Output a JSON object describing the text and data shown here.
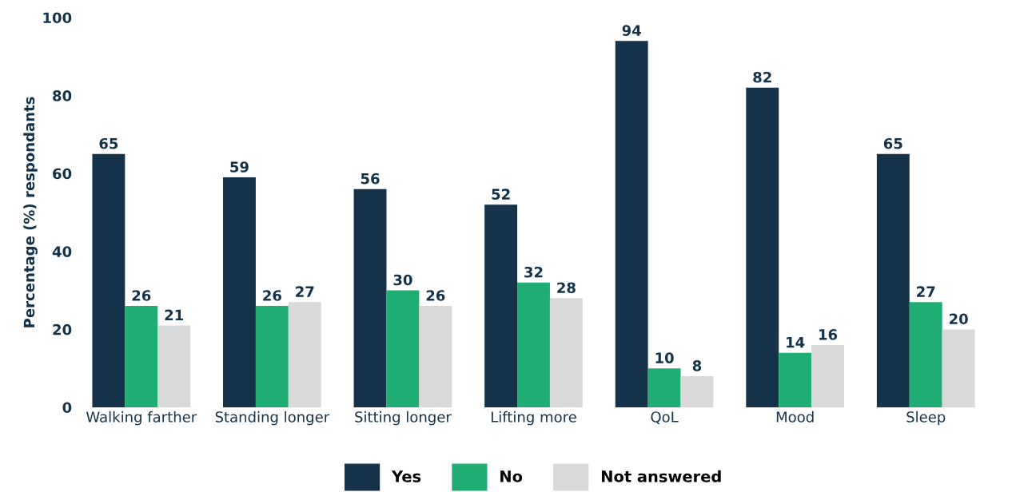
{
  "chart_data": {
    "type": "bar",
    "ylabel": "Percentage (%) respondants",
    "categories": [
      "Walking farther",
      "Standing longer",
      "Sitting longer",
      "Lifting more",
      "QoL",
      "Mood",
      "Sleep"
    ],
    "series": [
      {
        "name": "Yes",
        "color": "#14334a",
        "values": [
          65,
          59,
          56,
          52,
          94,
          82,
          65
        ]
      },
      {
        "name": "No",
        "color": "#20ad74",
        "values": [
          26,
          26,
          30,
          32,
          10,
          14,
          27
        ]
      },
      {
        "name": "Not answered",
        "color": "#d9d9d9",
        "values": [
          21,
          27,
          26,
          28,
          8,
          16,
          20
        ]
      }
    ],
    "ylim": [
      0,
      100
    ],
    "yticks": [
      0,
      20,
      40,
      60,
      80,
      100
    ],
    "grid": false,
    "legend": "bottom",
    "data_labels": true
  }
}
